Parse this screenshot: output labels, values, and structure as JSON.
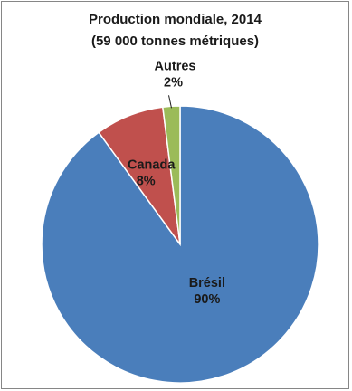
{
  "chart_data": {
    "type": "pie",
    "title": "Production mondiale, 2014",
    "subtitle": "(59 000 tonnes métriques)",
    "slices": [
      {
        "label": "Brésil",
        "value": 90,
        "value_label": "90%",
        "color": "#4a7ebb"
      },
      {
        "label": "Canada",
        "value": 8,
        "value_label": "8%",
        "color": "#c0504d"
      },
      {
        "label": "Autres",
        "value": 2,
        "value_label": "2%",
        "color": "#9bbb59"
      }
    ]
  }
}
